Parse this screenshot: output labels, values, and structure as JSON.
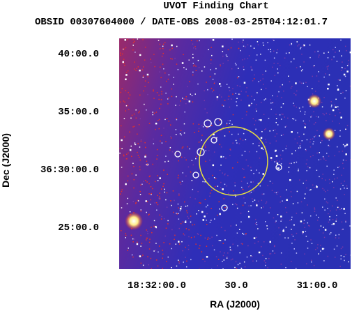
{
  "header": {
    "title": "UVOT Finding Chart",
    "subtitle": "OBSID 00307604000 / DATE-OBS 2008-03-25T04:12:01.7"
  },
  "axes": {
    "x_label": "RA (J2000)",
    "y_label": "Dec (J2000)",
    "x_ticks": [
      "18:32:00.0",
      "30.0",
      "31:00.0"
    ],
    "y_ticks": [
      "40:00.0",
      "35:00.0",
      "36:30:00.0",
      "25:00.0"
    ]
  }
}
